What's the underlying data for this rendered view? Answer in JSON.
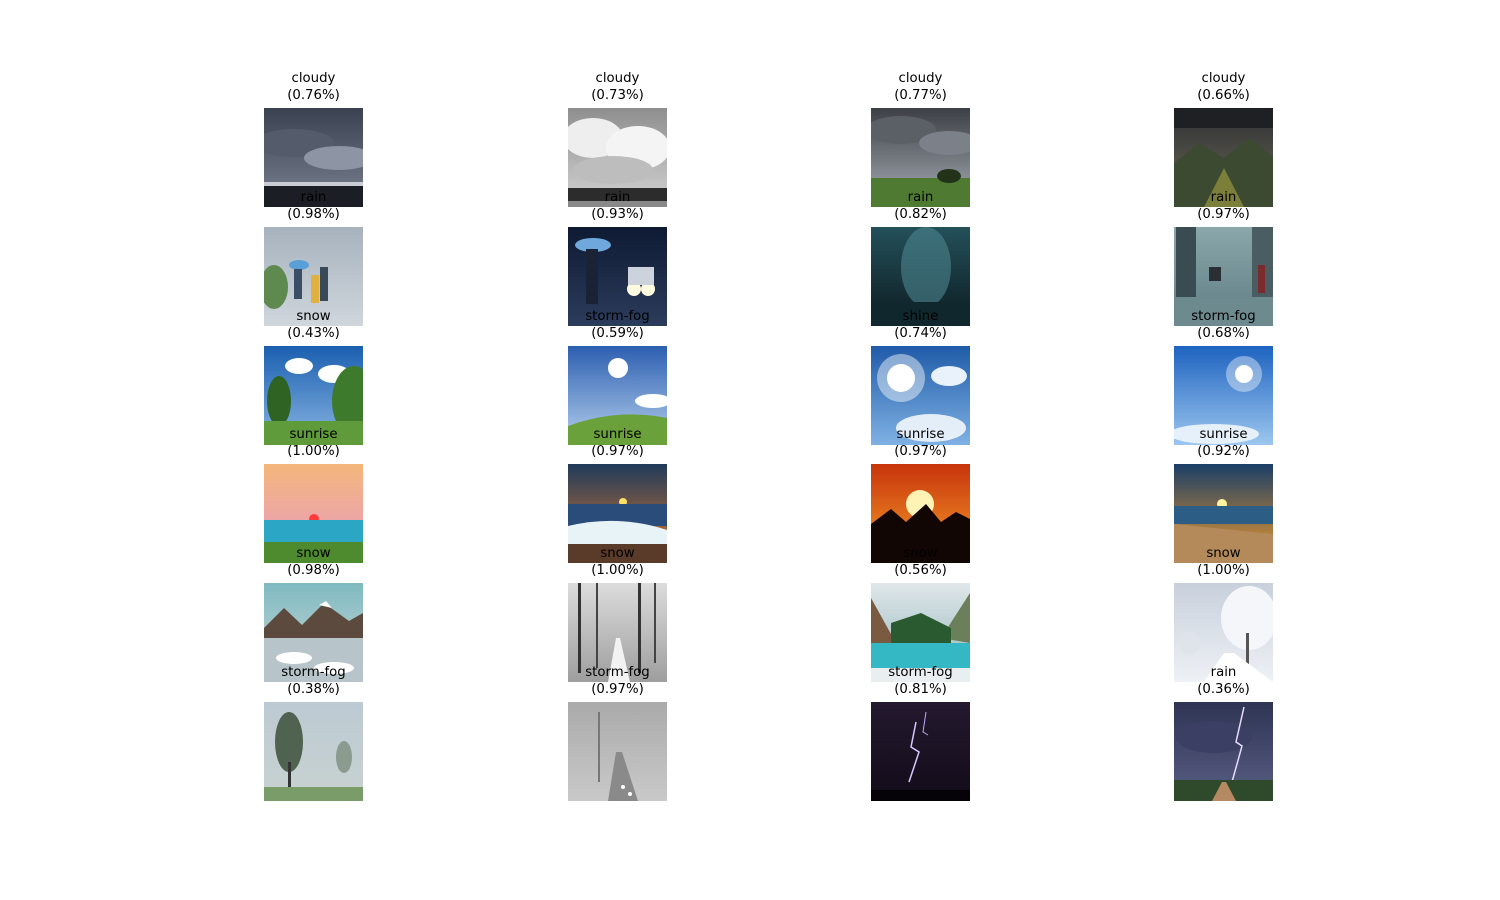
{
  "predictions": [
    {
      "label": "cloudy",
      "confidence": "(0.76%)",
      "scene": "cloudy-dark-sky"
    },
    {
      "label": "cloudy",
      "confidence": "(0.73%)",
      "scene": "cloudy-bw-clouds-trees"
    },
    {
      "label": "cloudy",
      "confidence": "(0.77%)",
      "scene": "cloudy-field-tree"
    },
    {
      "label": "cloudy",
      "confidence": "(0.66%)",
      "scene": "cloudy-mountain-valley"
    },
    {
      "label": "rain",
      "confidence": "(0.98%)",
      "scene": "rain-people-umbrellas"
    },
    {
      "label": "rain",
      "confidence": "(0.93%)",
      "scene": "rain-night-car-umbrella"
    },
    {
      "label": "rain",
      "confidence": "(0.82%)",
      "scene": "rain-drops-dark"
    },
    {
      "label": "rain",
      "confidence": "(0.97%)",
      "scene": "rain-street-people"
    },
    {
      "label": "snow",
      "confidence": "(0.43%)",
      "scene": "shine-trees-blue-sky"
    },
    {
      "label": "storm-fog",
      "confidence": "(0.59%)",
      "scene": "shine-sun-field"
    },
    {
      "label": "shine",
      "confidence": "(0.74%)",
      "scene": "shine-sunburst-clouds"
    },
    {
      "label": "storm-fog",
      "confidence": "(0.68%)",
      "scene": "shine-sun-blue-sky"
    },
    {
      "label": "sunrise",
      "confidence": "(1.00%)",
      "scene": "sunrise-pink-sea"
    },
    {
      "label": "sunrise",
      "confidence": "(0.97%)",
      "scene": "sunrise-wave-beach"
    },
    {
      "label": "sunrise",
      "confidence": "(0.97%)",
      "scene": "sunrise-orange-sun-trees"
    },
    {
      "label": "sunrise",
      "confidence": "(0.92%)",
      "scene": "sunrise-beach-shore"
    },
    {
      "label": "snow",
      "confidence": "(0.98%)",
      "scene": "snow-frozen-lake-mountains"
    },
    {
      "label": "snow",
      "confidence": "(1.00%)",
      "scene": "snow-forest-path"
    },
    {
      "label": "snow",
      "confidence": "(0.56%)",
      "scene": "snow-turquoise-lake"
    },
    {
      "label": "snow",
      "confidence": "(1.00%)",
      "scene": "snow-frosted-trees-road"
    },
    {
      "label": "storm-fog",
      "confidence": "(0.38%)",
      "scene": "fog-trees"
    },
    {
      "label": "storm-fog",
      "confidence": "(0.97%)",
      "scene": "fog-road"
    },
    {
      "label": "storm-fog",
      "confidence": "(0.81%)",
      "scene": "storm-lightning-night"
    },
    {
      "label": "rain",
      "confidence": "(0.36%)",
      "scene": "storm-lightning-road"
    }
  ]
}
